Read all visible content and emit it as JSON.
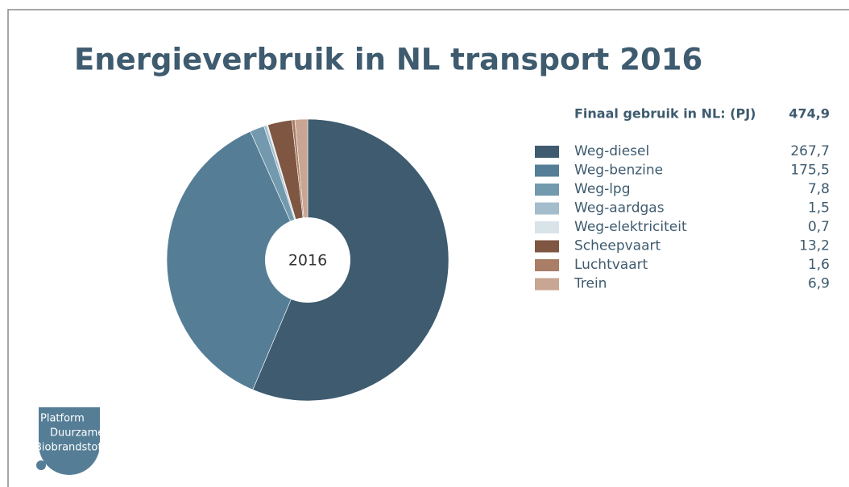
{
  "chart_data": {
    "type": "pie",
    "title": "Energieverbruik in NL transport 2016",
    "center_label": "2016",
    "legend_header": "Finaal gebruik in NL: (PJ)",
    "total_label": "474,9",
    "categories": [
      "Weg-diesel",
      "Weg-benzine",
      "Weg-lpg",
      "Weg-aardgas",
      "Weg-elektriciteit",
      "Scheepvaart",
      "Luchtvaart",
      "Trein"
    ],
    "values": [
      267.7,
      175.5,
      7.8,
      1.5,
      0.7,
      13.2,
      1.6,
      6.9
    ],
    "value_labels": [
      "267,7",
      "175,5",
      "7,8",
      "1,5",
      "0,7",
      "13,2",
      "1,6",
      "6,9"
    ],
    "colors": [
      "#3e5b6f",
      "#557e96",
      "#7299ae",
      "#a4bdcc",
      "#d8e3ea",
      "#7e5642",
      "#a97d66",
      "#c9a693"
    ]
  },
  "logo": {
    "lines": [
      "Platform",
      "Duurzame",
      "Biobrandstoff"
    ]
  }
}
